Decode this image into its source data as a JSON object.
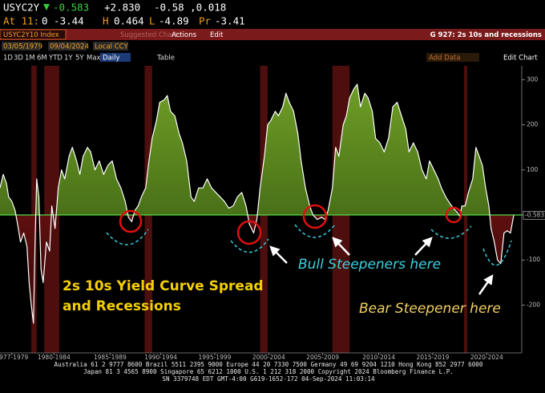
{
  "header": {
    "ticker": "USYC2Y",
    "last": "-0.583",
    "change": "+2.830",
    "hi_lo": "-0.58 ,0.018",
    "at_label": "At 11:",
    "open": "0 -3.44",
    "h_label": "H",
    "high": "0.464",
    "l_label": "L",
    "low": "-4.89",
    "pr_label": "Pr",
    "prev": "-3.41"
  },
  "toolbar": {
    "security": "USYC2Y10 Index",
    "suggested": "Suggested Charts",
    "actions": "Actions",
    "edit": "Edit",
    "page_title": "G 927: 2s 10s and recessions",
    "start_date": "03/05/1979",
    "end_date": "09/04/2024",
    "currency": "Local CCY",
    "periods": [
      "1D",
      "3D",
      "1M",
      "6M",
      "YTD",
      "1Y",
      "5Y",
      "Max"
    ],
    "frequency": "Daily",
    "table": "Table",
    "add_data": "Add Data",
    "edit_chart": "Edit Chart"
  },
  "chart_data": {
    "type": "area",
    "title_lines": [
      "2s 10s Yield Curve Spread",
      "and Recessions"
    ],
    "annotations": [
      "Bull Steepeners here",
      "Bear Steepener here"
    ],
    "x": [
      1977.1,
      1977.4,
      1977.7,
      1977.9,
      1978.2,
      1978.5,
      1978.8,
      1979.0,
      1979.3,
      1979.6,
      1979.8,
      1980.0,
      1980.2,
      1980.35,
      1980.5,
      1980.7,
      1980.9,
      1981.1,
      1981.4,
      1981.7,
      1981.9,
      1982.2,
      1982.5,
      1982.8,
      1983.1,
      1983.5,
      1983.8,
      1984.2,
      1984.5,
      1984.8,
      1985.2,
      1985.5,
      1985.9,
      1986.3,
      1986.7,
      1987.1,
      1987.5,
      1987.9,
      1988.3,
      1988.7,
      1989.0,
      1989.3,
      1989.6,
      1989.9,
      1990.2,
      1990.6,
      1990.9,
      1991.2,
      1991.6,
      1991.9,
      1992.3,
      1992.6,
      1992.9,
      1993.3,
      1993.7,
      1994.0,
      1994.4,
      1994.8,
      1995.1,
      1995.5,
      1995.9,
      1996.3,
      1996.7,
      1997.1,
      1997.5,
      1997.9,
      1998.3,
      1998.7,
      1999.1,
      1999.5,
      1999.9,
      2000.2,
      2000.6,
      2000.9,
      2001.2,
      2001.6,
      2001.9,
      2002.2,
      2002.6,
      2002.9,
      2003.3,
      2003.6,
      2003.9,
      2004.3,
      2004.7,
      2005.0,
      2005.4,
      2005.8,
      2006.1,
      2006.5,
      2006.9,
      2007.2,
      2007.5,
      2007.9,
      2008.2,
      2008.5,
      2008.9,
      2009.2,
      2009.5,
      2009.9,
      2010.2,
      2010.5,
      2010.9,
      2011.2,
      2011.6,
      2011.9,
      2012.3,
      2012.7,
      2013.1,
      2013.5,
      2013.9,
      2014.3,
      2014.7,
      2015.0,
      2015.4,
      2015.8,
      2016.2,
      2016.6,
      2016.9,
      2017.3,
      2017.7,
      2018.0,
      2018.4,
      2018.8,
      2019.1,
      2019.5,
      2019.7,
      2019.9,
      2020.2,
      2020.5,
      2020.9,
      2021.2,
      2021.5,
      2021.8,
      2022.1,
      2022.4,
      2022.6,
      2022.9,
      2023.2,
      2023.5,
      2023.8,
      2024.1,
      2024.4,
      2024.7
    ],
    "values": [
      60,
      90,
      70,
      40,
      30,
      10,
      -30,
      -60,
      -40,
      -70,
      -150,
      -200,
      -240,
      -60,
      80,
      40,
      -120,
      -150,
      -60,
      -80,
      20,
      -30,
      60,
      100,
      80,
      130,
      150,
      120,
      90,
      130,
      150,
      140,
      100,
      120,
      90,
      110,
      120,
      80,
      60,
      30,
      -5,
      -15,
      10,
      20,
      40,
      60,
      120,
      170,
      210,
      250,
      255,
      265,
      230,
      220,
      180,
      160,
      120,
      40,
      30,
      60,
      60,
      80,
      60,
      50,
      40,
      30,
      15,
      20,
      40,
      50,
      20,
      -20,
      -40,
      -10,
      60,
      130,
      200,
      210,
      230,
      220,
      240,
      270,
      250,
      230,
      180,
      120,
      60,
      20,
      0,
      -10,
      -5,
      -10,
      10,
      60,
      150,
      130,
      200,
      220,
      260,
      280,
      290,
      240,
      270,
      260,
      230,
      170,
      160,
      140,
      170,
      240,
      250,
      220,
      190,
      140,
      160,
      140,
      100,
      80,
      120,
      100,
      80,
      60,
      40,
      25,
      15,
      5,
      -3,
      20,
      20,
      50,
      80,
      150,
      130,
      110,
      60,
      20,
      -30,
      -60,
      -100,
      -108,
      -40,
      -35,
      -40,
      -0.58
    ],
    "last_value_label": "-0.5835",
    "recessions": [
      [
        1980.0,
        1980.5
      ],
      [
        1981.2,
        1982.6
      ],
      [
        1990.5,
        1991.2
      ],
      [
        2001.2,
        2001.9
      ],
      [
        2007.9,
        2009.5
      ],
      [
        2020.1,
        2020.4
      ]
    ],
    "xlim": [
      1977.1,
      2025.0
    ],
    "ylim": [
      -306,
      331
    ],
    "yticks": [
      -200,
      -100,
      0,
      100,
      200,
      300
    ],
    "xticks": [
      {
        "value": 1978.2,
        "label": "1977-1979"
      },
      {
        "value": 1982.1,
        "label": "1980-1984"
      },
      {
        "value": 1987.3,
        "label": "1985-1989"
      },
      {
        "value": 1992.0,
        "label": "1990-1994"
      },
      {
        "value": 1997.0,
        "label": "1995-1999"
      },
      {
        "value": 2002.0,
        "label": "2000-2004"
      },
      {
        "value": 2007.0,
        "label": "2005-2009"
      },
      {
        "value": 2012.2,
        "label": "2010-2014"
      },
      {
        "value": 2017.2,
        "label": "2015-2019"
      },
      {
        "value": 2022.2,
        "label": "2020-2024"
      }
    ],
    "line_color": "#ffffff",
    "positive_color": "#5f8f22",
    "negative_color": "#7a1414",
    "recession_color": "#5a1010",
    "zero_line_color": "#55dd44"
  },
  "footer": {
    "lines": [
      "Australia 61 2 9777 8600 Brazil 5511 2395 9000 Europe 44 20 7330 7500 Germany 49 69 9204 1210 Hong Kong 852 2977 6000",
      "Japan 81 3 4565 8900      Singapore 65 6212 1000      U.S. 1 212 318 2000      Copyright 2024 Bloomberg Finance L.P.",
      "SN 3379748 EDT  GMT-4:00 G619-1652-172 04-Sep-2024 11:03:14"
    ]
  }
}
